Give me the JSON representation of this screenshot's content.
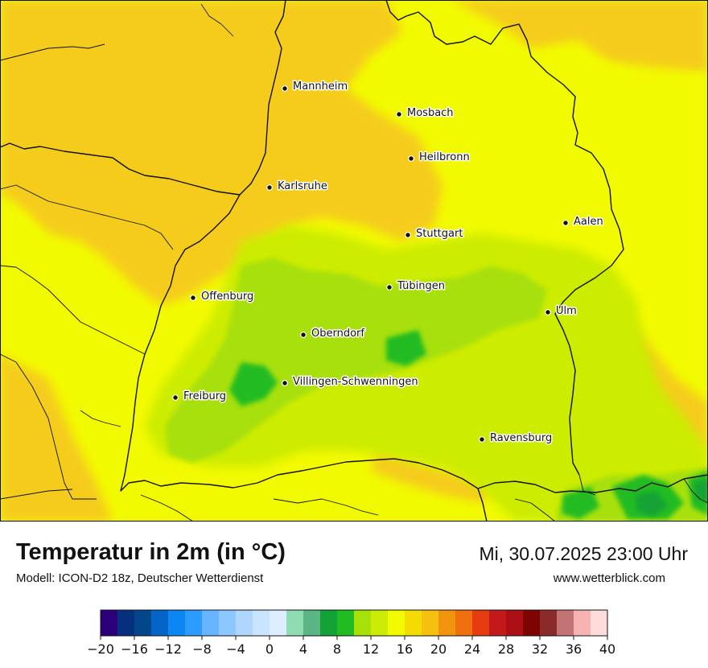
{
  "map": {
    "cities": [
      {
        "name": "Mannheim"
      },
      {
        "name": "Mosbach"
      },
      {
        "name": "Heilbronn"
      },
      {
        "name": "Karlsruhe"
      },
      {
        "name": "Aalen"
      },
      {
        "name": "Stuttgart"
      },
      {
        "name": "Tübingen"
      },
      {
        "name": "Offenburg"
      },
      {
        "name": "Ulm"
      },
      {
        "name": "Oberndorf"
      },
      {
        "name": "Villingen-Schwenningen"
      },
      {
        "name": "Freiburg"
      },
      {
        "name": "Ravensburg"
      }
    ],
    "colors": {
      "warm_orange": "#f5cc1c",
      "yellow": "#f2fa00",
      "yellow_green": "#ccec06",
      "light_green": "#a8e00a",
      "green": "#21bc22",
      "dark_green": "#13a235",
      "border": "#111111"
    }
  },
  "footer": {
    "title": "Temperatur in 2m (in °C)",
    "model": "Modell: ICON-D2 18z, Deutscher Wetterdienst",
    "datetime": "Mi, 30.07.2025 23:00 Uhr",
    "website": "www.wetterblick.com"
  },
  "legend": {
    "min": -20,
    "max": 40,
    "step": 2,
    "ticks": [
      "−20",
      "−16",
      "−12",
      "−8",
      "−4",
      "0",
      "4",
      "8",
      "12",
      "16",
      "20",
      "24",
      "28",
      "32",
      "36",
      "40"
    ],
    "colors": [
      "#2c007a",
      "#05307e",
      "#03478a",
      "#0564c8",
      "#0a87f2",
      "#2d9cff",
      "#68b5ff",
      "#8cc7ff",
      "#aed6ff",
      "#c8e4ff",
      "#dceeff",
      "#8fdcb2",
      "#5ab484",
      "#13a235",
      "#21bc22",
      "#a8e00a",
      "#ccec06",
      "#f2fa00",
      "#f2dc04",
      "#f5c010",
      "#f3940e",
      "#f07010",
      "#e63a10",
      "#c4191a",
      "#aa1016",
      "#7e0404",
      "#8a2a2a",
      "#c27474",
      "#f7b2b2",
      "#fedcdc"
    ]
  }
}
